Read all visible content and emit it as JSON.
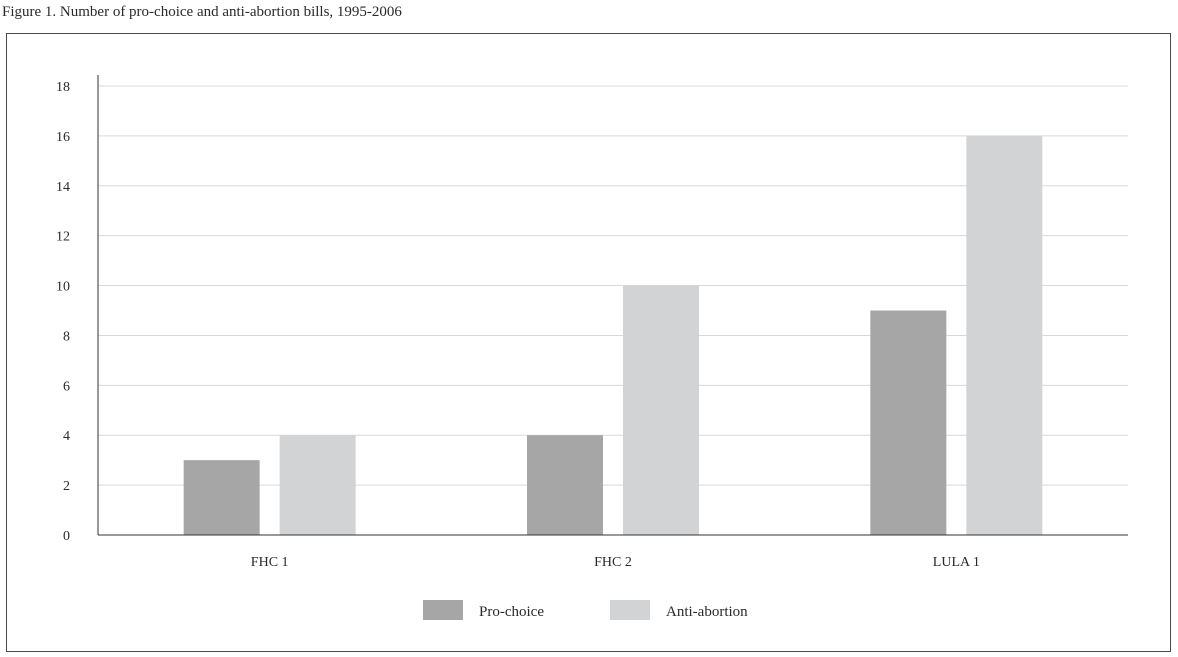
{
  "figure": {
    "caption": "Figure 1. Number of pro-choice and anti-abortion bills, 1995-2006"
  },
  "colors": {
    "pro_choice": "#a6a6a7",
    "anti_abortion": "#d2d3d4",
    "grid": "#d9d9d9",
    "axis": "#333333"
  },
  "chart_data": {
    "type": "bar",
    "title": "",
    "xlabel": "",
    "ylabel": "",
    "categories": [
      "FHC 1",
      "FHC 2",
      "LULA 1"
    ],
    "series": [
      {
        "name": "Pro-choice",
        "values": [
          3,
          4,
          9
        ]
      },
      {
        "name": "Anti-abortion",
        "values": [
          4,
          10,
          16
        ]
      }
    ],
    "ylim": [
      0,
      18
    ],
    "yticks": [
      0,
      2,
      4,
      6,
      8,
      10,
      12,
      14,
      16,
      18
    ],
    "grid": true,
    "legend_position": "bottom-center"
  }
}
